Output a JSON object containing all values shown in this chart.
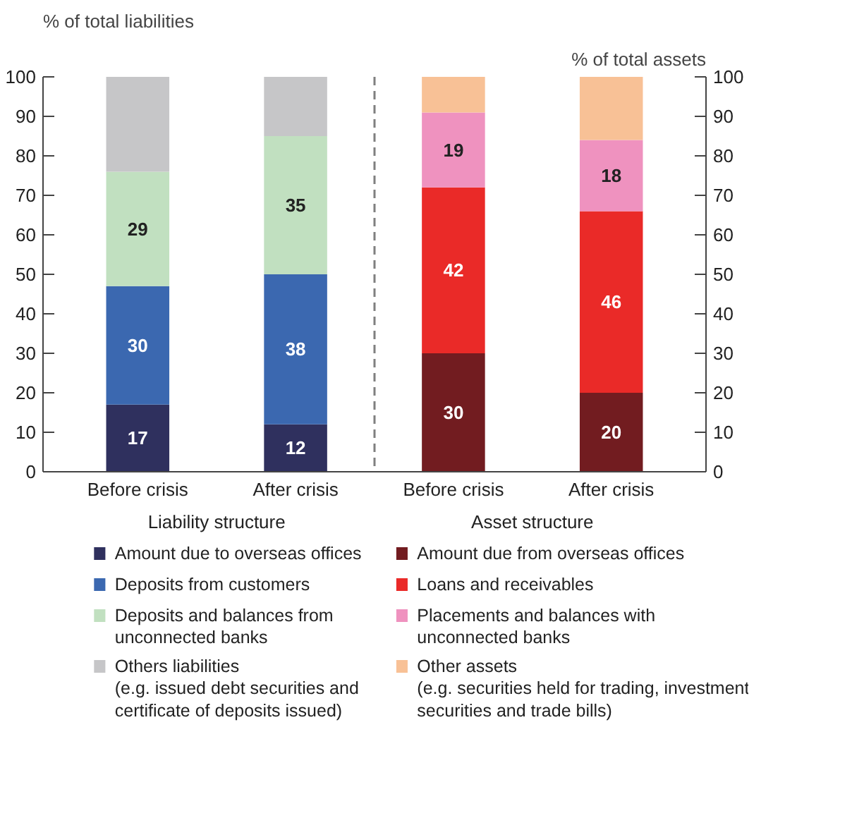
{
  "chart_data": {
    "type": "bar",
    "stacked": true,
    "categories": [
      "Before crisis",
      "After crisis",
      "Before crisis",
      "After crisis"
    ],
    "ylabel": "% of total liabilities",
    "y2label": "% of total assets",
    "ylim": [
      0,
      100
    ],
    "yticks": [
      0,
      10,
      20,
      30,
      40,
      50,
      60,
      70,
      80,
      90,
      100
    ],
    "y2lim": [
      0,
      100
    ],
    "y2ticks": [
      0,
      10,
      20,
      30,
      40,
      50,
      60,
      70,
      80,
      90,
      100
    ],
    "annotations": [
      "Liability structure",
      "Asset structure"
    ],
    "grid": false,
    "legend": "bottom",
    "series": [
      {
        "name": "Amount due to overseas offices",
        "color": "#2f305e",
        "values": [
          17,
          12,
          null,
          null
        ],
        "value_labels": [
          "17",
          "12",
          null,
          null
        ]
      },
      {
        "name": "Deposits from customers",
        "color": "#3b68b0",
        "values": [
          30,
          38,
          null,
          null
        ],
        "value_labels": [
          "30",
          "38",
          null,
          null
        ]
      },
      {
        "name": "Deposits and balances from\nunconnected banks",
        "color": "#c1e0c0",
        "values": [
          29,
          35,
          null,
          null
        ],
        "value_labels": [
          "29",
          "35",
          null,
          null
        ]
      },
      {
        "name": "Others liabilities\n(e.g. issued debt securities and\ncertificate of deposits issued)",
        "color": "#c6c6c8",
        "values": [
          24,
          15,
          null,
          null
        ]
      },
      {
        "name": "Amount due from overseas offices",
        "color": "#721c20",
        "values": [
          null,
          null,
          30,
          20
        ],
        "value_labels": [
          null,
          null,
          "30",
          "20"
        ]
      },
      {
        "name": "Loans and receivables",
        "color": "#ea2a28",
        "values": [
          null,
          null,
          42,
          46
        ],
        "value_labels": [
          null,
          null,
          "42",
          "46"
        ]
      },
      {
        "name": "Placements and balances with\nunconnected banks",
        "color": "#ef92bf",
        "values": [
          null,
          null,
          19,
          18
        ],
        "value_labels": [
          null,
          null,
          "19",
          "18"
        ]
      },
      {
        "name": "Other assets\n(e.g. securities held for trading, investment\nsecurities and trade bills)",
        "color": "#f8c196",
        "values": [
          null,
          null,
          9,
          16
        ]
      }
    ]
  }
}
